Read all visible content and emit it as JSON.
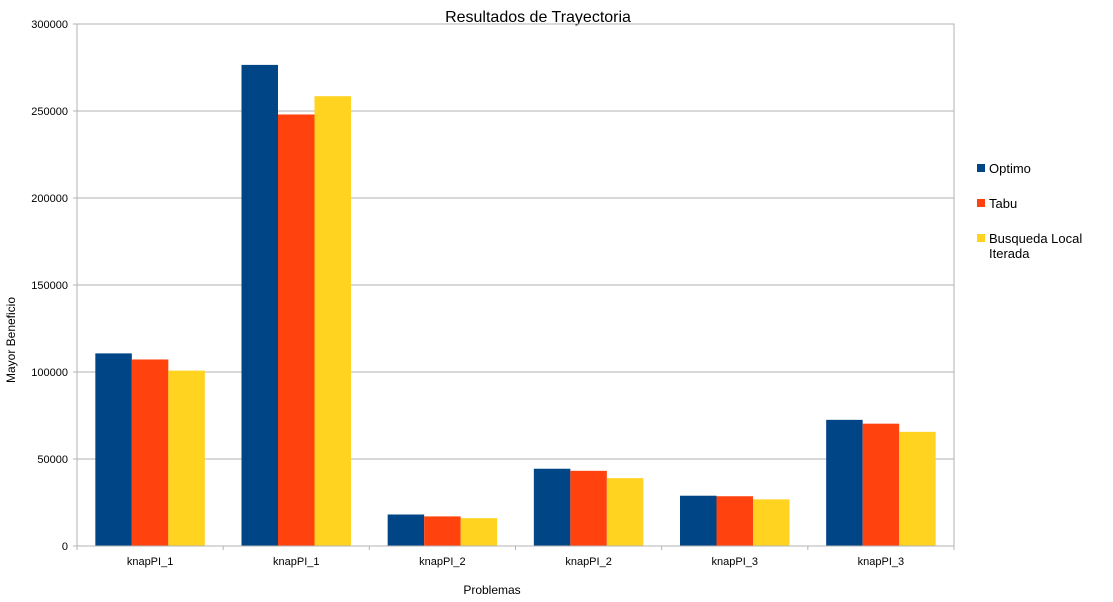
{
  "chart_data": {
    "type": "bar",
    "title": "Resultados de Trayectoria",
    "xlabel": "Problemas",
    "ylabel": "Mayor Beneficio",
    "ylim": [
      0,
      300000
    ],
    "yticks": [
      0,
      50000,
      100000,
      150000,
      200000,
      250000,
      300000
    ],
    "ytick_labels": [
      "0",
      "50000",
      "100000",
      "150000",
      "200000",
      "250000",
      "300000"
    ],
    "grid": true,
    "legend_position": "right",
    "categories": [
      "knapPI_1",
      "knapPI_1",
      "knapPI_2",
      "knapPI_2",
      "knapPI_3",
      "knapPI_3"
    ],
    "series": [
      {
        "name": "Optimo",
        "color": "#004586",
        "values": [
          110700,
          276500,
          18100,
          44400,
          28900,
          72500
        ]
      },
      {
        "name": "Tabu",
        "color": "#ff420e",
        "values": [
          107200,
          248000,
          17000,
          43200,
          28600,
          70300
        ]
      },
      {
        "name": "Busqueda Local Iterada",
        "legend_lines": [
          "Busqueda Local",
          "Iterada"
        ],
        "color": "#ffd320",
        "values": [
          100800,
          258500,
          16000,
          39000,
          26800,
          65600
        ]
      }
    ]
  }
}
